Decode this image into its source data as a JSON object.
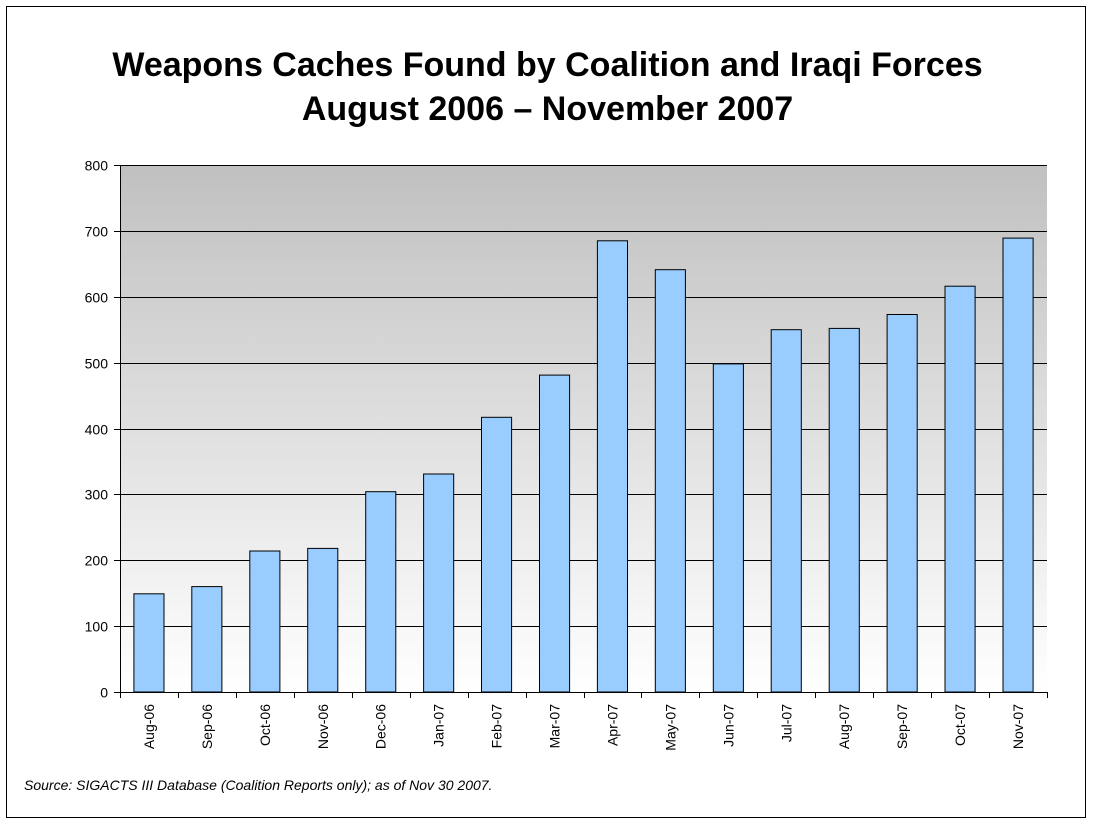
{
  "title_line1": "Weapons Caches Found by Coalition and Iraqi Forces",
  "title_line2": "August 2006 – November 2007",
  "source": "Source:  SIGACTS III Database (Coalition Reports only); as of Nov 30 2007.",
  "colors": {
    "bar_fill": "#99ccff",
    "bar_stroke": "#000000",
    "plot_top": "#c0c0c0",
    "plot_bottom": "#ffffff",
    "gridline": "#000000"
  },
  "chart_data": {
    "type": "bar",
    "title": "Weapons Caches Found by Coalition and Iraqi Forces August 2006 – November 2007",
    "xlabel": "",
    "ylabel": "",
    "ylim": [
      0,
      800
    ],
    "yticks": [
      0,
      100,
      200,
      300,
      400,
      500,
      600,
      700,
      800
    ],
    "grid": true,
    "categories": [
      "Aug-06",
      "Sep-06",
      "Oct-06",
      "Nov-06",
      "Dec-06",
      "Jan-07",
      "Feb-07",
      "Mar-07",
      "Apr-07",
      "May-07",
      "Jun-07",
      "Jul-07",
      "Aug-07",
      "Sep-07",
      "Oct-07",
      "Nov-07"
    ],
    "values": [
      149,
      160,
      214,
      218,
      304,
      331,
      417,
      481,
      685,
      641,
      498,
      550,
      552,
      573,
      616,
      689
    ]
  }
}
